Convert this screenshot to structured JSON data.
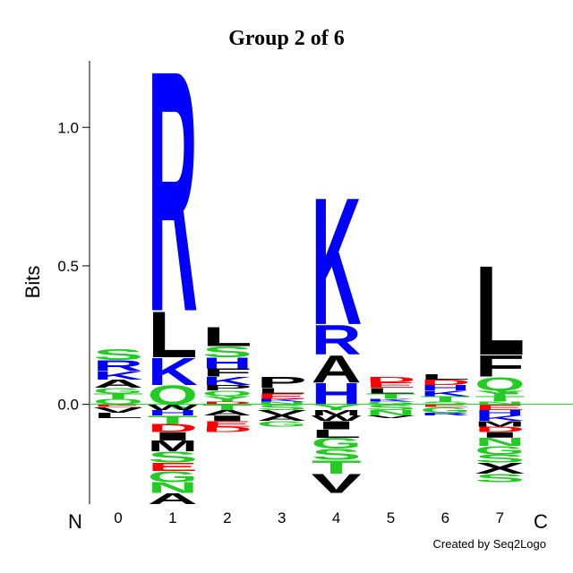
{
  "chart_data": {
    "type": "logo",
    "title": "Group 2 of 6",
    "ylabel": "Bits",
    "xlabel_left": "N",
    "xlabel_right": "C",
    "footer": "Created by Seq2Logo",
    "categories": [
      "0",
      "1",
      "2",
      "3",
      "4",
      "5",
      "6",
      "7"
    ],
    "ylim": [
      -0.36,
      1.24
    ],
    "yticks": [
      {
        "value": 0,
        "label": "0.0"
      },
      {
        "value": 0.5,
        "label": "0.5"
      },
      {
        "value": 1,
        "label": "1.0"
      }
    ],
    "zero_line_color": "#22cc22",
    "letter_colors": {
      "A": "#000000",
      "V": "#000000",
      "L": "#000000",
      "I": "#000000",
      "M": "#000000",
      "P": "#000000",
      "F": "#000000",
      "W": "#000000",
      "X": "#000000",
      "K": "#0000ff",
      "R": "#0000ff",
      "H": "#0000ff",
      "D": "#ff0000",
      "E": "#ff0000",
      "S": "#22cc22",
      "T": "#22cc22",
      "N": "#22cc22",
      "Q": "#22cc22",
      "G": "#22cc22",
      "Y": "#22cc22",
      "C": "#22cc22"
    },
    "positive": [
      [
        {
          "letter": "Q",
          "value": 0.02
        },
        {
          "letter": "T",
          "value": 0.02
        },
        {
          "letter": "G",
          "value": 0.02
        },
        {
          "letter": "A",
          "value": 0.03
        },
        {
          "letter": "K",
          "value": 0.03
        },
        {
          "letter": "R",
          "value": 0.04
        },
        {
          "letter": "S",
          "value": 0.04
        }
      ],
      [
        {
          "letter": "Q",
          "value": 0.07
        },
        {
          "letter": "K",
          "value": 0.1
        },
        {
          "letter": "L",
          "value": 0.17
        },
        {
          "letter": "R",
          "value": 0.89
        }
      ],
      [
        {
          "letter": "D",
          "value": 0.01
        },
        {
          "letter": "Y",
          "value": 0.02
        },
        {
          "letter": "Q",
          "value": 0.02
        },
        {
          "letter": "P",
          "value": 0.02
        },
        {
          "letter": "K",
          "value": 0.03
        },
        {
          "letter": "F",
          "value": 0.03
        },
        {
          "letter": "H",
          "value": 0.04
        },
        {
          "letter": "S",
          "value": 0.04
        },
        {
          "letter": "L",
          "value": 0.07
        }
      ],
      [
        {
          "letter": "N",
          "value": 0.01
        },
        {
          "letter": "K",
          "value": 0.01
        },
        {
          "letter": "E",
          "value": 0.02
        },
        {
          "letter": "L",
          "value": 0.02
        },
        {
          "letter": "P",
          "value": 0.04
        }
      ],
      [
        {
          "letter": "H",
          "value": 0.08
        },
        {
          "letter": "A",
          "value": 0.1
        },
        {
          "letter": "R",
          "value": 0.11
        },
        {
          "letter": "K",
          "value": 0.47
        }
      ],
      [
        {
          "letter": "G",
          "value": 0.01
        },
        {
          "letter": "K",
          "value": 0.01
        },
        {
          "letter": "T",
          "value": 0.02
        },
        {
          "letter": "L",
          "value": 0.02
        },
        {
          "letter": "E",
          "value": 0.02
        },
        {
          "letter": "D",
          "value": 0.02
        }
      ],
      [
        {
          "letter": "S",
          "value": 0.01
        },
        {
          "letter": "T",
          "value": 0.02
        },
        {
          "letter": "K",
          "value": 0.02
        },
        {
          "letter": "H",
          "value": 0.02
        },
        {
          "letter": "D",
          "value": 0.02
        },
        {
          "letter": "L",
          "value": 0.02
        }
      ],
      [
        {
          "letter": "N",
          "value": 0.01
        },
        {
          "letter": "T",
          "value": 0.02
        },
        {
          "letter": "Y",
          "value": 0.02
        },
        {
          "letter": "Q",
          "value": 0.05
        },
        {
          "letter": "F",
          "value": 0.08
        },
        {
          "letter": "L",
          "value": 0.33
        }
      ]
    ],
    "negative": [
      [
        {
          "letter": "E",
          "value": -0.01
        },
        {
          "letter": "V",
          "value": -0.02
        },
        {
          "letter": "L",
          "value": -0.02
        }
      ],
      [
        {
          "letter": "W",
          "value": -0.02
        },
        {
          "letter": "H",
          "value": -0.02
        },
        {
          "letter": "T",
          "value": -0.03
        },
        {
          "letter": "D",
          "value": -0.03
        },
        {
          "letter": "I",
          "value": -0.03
        },
        {
          "letter": "M",
          "value": -0.04
        },
        {
          "letter": "S",
          "value": -0.04
        },
        {
          "letter": "E",
          "value": -0.03
        },
        {
          "letter": "G",
          "value": -0.04
        },
        {
          "letter": "N",
          "value": -0.04
        },
        {
          "letter": "A",
          "value": -0.04
        }
      ],
      [
        {
          "letter": "T",
          "value": -0.02
        },
        {
          "letter": "A",
          "value": -0.02
        },
        {
          "letter": "I",
          "value": -0.02
        },
        {
          "letter": "E",
          "value": -0.02
        },
        {
          "letter": "D",
          "value": -0.02
        }
      ],
      [
        {
          "letter": "S",
          "value": -0.02
        },
        {
          "letter": "V",
          "value": -0.02
        },
        {
          "letter": "A",
          "value": -0.02
        },
        {
          "letter": "G",
          "value": -0.02
        }
      ],
      [
        {
          "letter": "Y",
          "value": -0.02
        },
        {
          "letter": "M",
          "value": -0.02
        },
        {
          "letter": "W",
          "value": -0.02
        },
        {
          "letter": "I",
          "value": -0.03
        },
        {
          "letter": "L",
          "value": -0.03
        },
        {
          "letter": "G",
          "value": -0.04
        },
        {
          "letter": "S",
          "value": -0.04
        },
        {
          "letter": "T",
          "value": -0.05
        },
        {
          "letter": "V",
          "value": -0.07
        }
      ],
      [
        {
          "letter": "S",
          "value": -0.02
        },
        {
          "letter": "N",
          "value": -0.02
        },
        {
          "letter": "V",
          "value": -0.01
        }
      ],
      [
        {
          "letter": "E",
          "value": -0.01
        },
        {
          "letter": "G",
          "value": -0.02
        },
        {
          "letter": "R",
          "value": -0.01
        }
      ],
      [
        {
          "letter": "E",
          "value": -0.02
        },
        {
          "letter": "H",
          "value": -0.02
        },
        {
          "letter": "K",
          "value": -0.02
        },
        {
          "letter": "M",
          "value": -0.02
        },
        {
          "letter": "D",
          "value": -0.02
        },
        {
          "letter": "I",
          "value": -0.02
        },
        {
          "letter": "N",
          "value": -0.03
        },
        {
          "letter": "G",
          "value": -0.03
        },
        {
          "letter": "S",
          "value": -0.03
        },
        {
          "letter": "X",
          "value": -0.04
        },
        {
          "letter": "S",
          "value": -0.03
        }
      ]
    ]
  }
}
